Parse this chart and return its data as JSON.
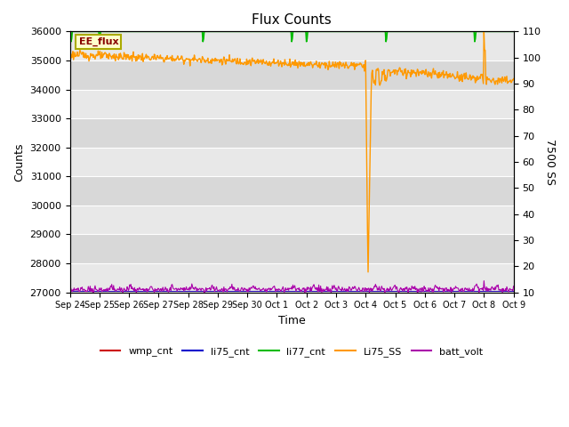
{
  "title": "Flux Counts",
  "xlabel": "Time",
  "ylabel_left": "Counts",
  "ylabel_right": "7500 SS",
  "ylim_left": [
    27000,
    36000
  ],
  "ylim_right": [
    10,
    110
  ],
  "bg_color_light": "#e8e8e8",
  "bg_color_dark": "#d0d0d0",
  "annotation_text": "EE_flux",
  "annotation_bg": "#ffffcc",
  "annotation_border": "#aaaa00",
  "x_ticks_labels": [
    "Sep 24",
    "Sep 25",
    "Sep 26",
    "Sep 27",
    "Sep 28",
    "Sep 29",
    "Sep 30",
    "Oct 1",
    "Oct 2",
    "Oct 3",
    "Oct 4",
    "Oct 5",
    "Oct 6",
    "Oct 7",
    "Oct 8",
    "Oct 9"
  ],
  "legend_entries": [
    {
      "label": "wmp_cnt",
      "color": "#cc0000"
    },
    {
      "label": "li75_cnt",
      "color": "#0000cc"
    },
    {
      "label": "li77_cnt",
      "color": "#00cc00"
    },
    {
      "label": "Li75_SS",
      "color": "#ff9900"
    },
    {
      "label": "batt_volt",
      "color": "#9900cc"
    }
  ],
  "line_colors": {
    "wmp_cnt": "#cc0000",
    "li75_cnt": "#0000cc",
    "li77_cnt": "#00bb00",
    "Li75_SS": "#ff9900",
    "batt_volt": "#aa00aa"
  }
}
